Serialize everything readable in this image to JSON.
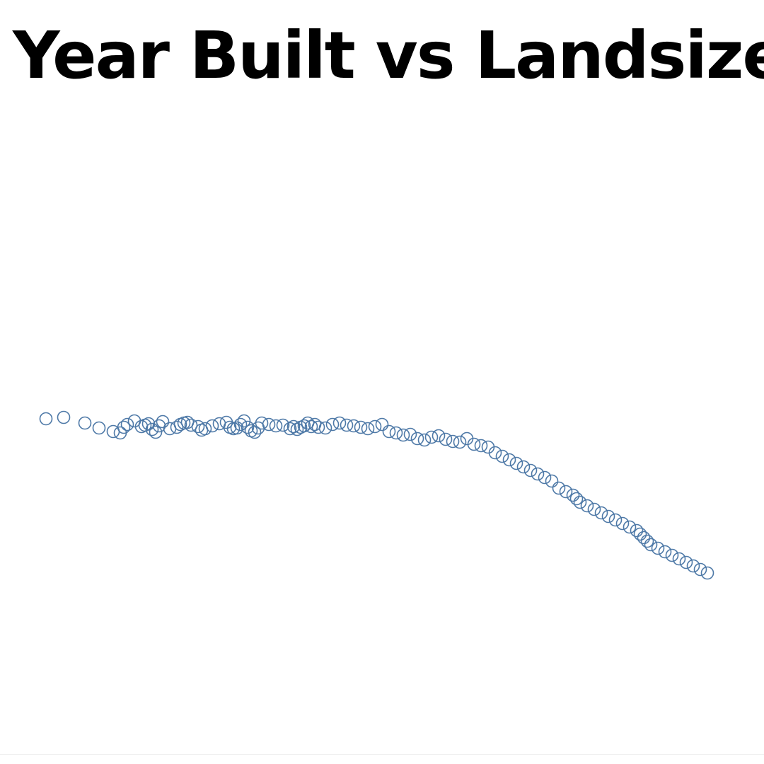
{
  "chart_data": {
    "type": "scatter",
    "title": "Year Built vs Landsize",
    "xlabel": "",
    "ylabel": "",
    "grid": false,
    "legend": "none",
    "marker": "hollow-circle",
    "color": "#4e79a7",
    "series": [
      {
        "name": "",
        "x": [
          65,
          90,
          120,
          140,
          160,
          170,
          175,
          180,
          190,
          200,
          205,
          210,
          215,
          220,
          225,
          230,
          240,
          250,
          255,
          260,
          265,
          270,
          280,
          285,
          290,
          300,
          310,
          320,
          325,
          330,
          335,
          340,
          345,
          350,
          355,
          360,
          365,
          370,
          380,
          390,
          400,
          410,
          415,
          420,
          425,
          430,
          435,
          440,
          445,
          450,
          460,
          470,
          480,
          490,
          500,
          510,
          520,
          530,
          540,
          550,
          560,
          570,
          580,
          590,
          600,
          610,
          620,
          630,
          640,
          650,
          660,
          670,
          680,
          690,
          700,
          710,
          720,
          730,
          740,
          750,
          760,
          770,
          780,
          790,
          800,
          810,
          815,
          820,
          830,
          840,
          850,
          860,
          870,
          880,
          890,
          900,
          905,
          910,
          915,
          920,
          930,
          940,
          950,
          960,
          970,
          980,
          990,
          1000
        ],
        "y": [
          592,
          590,
          598,
          605,
          610,
          612,
          604,
          600,
          595,
          603,
          601,
          599,
          607,
          611,
          602,
          596,
          606,
          604,
          600,
          598,
          597,
          601,
          603,
          608,
          606,
          602,
          599,
          597,
          604,
          606,
          605,
          600,
          595,
          604,
          609,
          611,
          605,
          598,
          600,
          602,
          601,
          606,
          603,
          607,
          604,
          602,
          598,
          603,
          600,
          604,
          605,
          600,
          598,
          601,
          602,
          604,
          606,
          603,
          600,
          610,
          612,
          615,
          614,
          620,
          622,
          618,
          616,
          621,
          624,
          625,
          620,
          628,
          630,
          632,
          640,
          645,
          650,
          655,
          660,
          665,
          670,
          675,
          680,
          690,
          695,
          700,
          705,
          710,
          715,
          720,
          725,
          730,
          735,
          740,
          745,
          750,
          755,
          760,
          765,
          770,
          775,
          780,
          785,
          790,
          795,
          800,
          805,
          810
        ]
      }
    ]
  }
}
